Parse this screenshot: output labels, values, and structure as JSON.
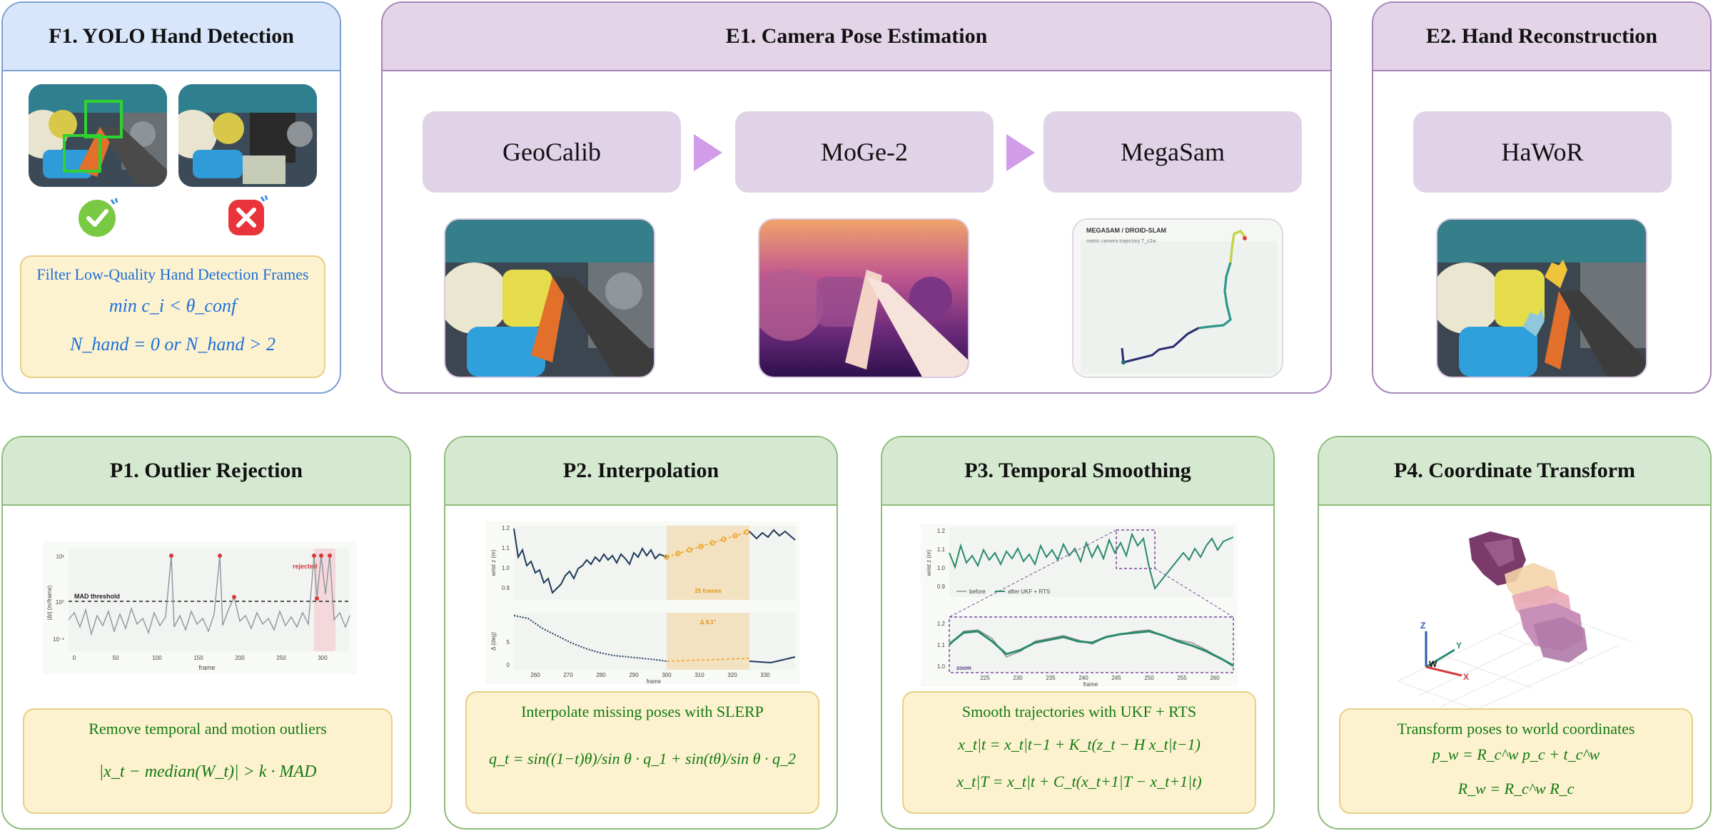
{
  "f1": {
    "title": "F1. YOLO Hand Detection",
    "note_title": "Filter Low-Quality Hand Detection Frames",
    "formula1": "min c_i < θ_conf",
    "formula2": "N_hand = 0 or N_hand > 2",
    "icons": [
      "check-badge-icon",
      "cross-badge-icon"
    ],
    "colors": {
      "accent": "#1c6fd8",
      "check": "#7ac943",
      "cross": "#e8343a",
      "detect_box": "#2fd32f"
    }
  },
  "e1": {
    "title": "E1. Camera Pose Estimation",
    "stages": [
      "GeoCalib",
      "MoGe-2",
      "MegaSam"
    ],
    "traj_title": "MEGASAM / DROID-SLAM",
    "traj_sub": "metric camera trajectory T_c2w"
  },
  "e2": {
    "title": "E2. Hand Reconstruction",
    "stage": "HaWoR"
  },
  "p1": {
    "title": "P1. Outlier Rejection",
    "note_title": "Remove temporal and motion outliers",
    "formula": "|x_t − median(W_t)| > k · MAD",
    "plot": {
      "ylabel": "|Δt| (m/frame)",
      "xlabel": "frame",
      "threshold_label": "MAD threshold",
      "rejected_label": "rejected",
      "xticks": [
        "0",
        "50",
        "100",
        "150",
        "200",
        "250",
        "300"
      ],
      "yticks": [
        "10¹",
        "10⁰",
        "10⁻¹"
      ]
    }
  },
  "p2": {
    "title": "P2. Interpolation",
    "note_title": "Interpolate missing poses with SLERP",
    "formula": "q_t = sin((1−t)θ)/sin θ · q_1 + sin(tθ)/sin θ · q_2",
    "plot": {
      "ylabel_top": "wrist z (m)",
      "ylabel_bottom": "Δ (deg)",
      "xlabel": "frame",
      "gap_label": "25 frames",
      "angle_label": "Δ 8.1°",
      "xticks": [
        "260",
        "270",
        "280",
        "290",
        "300",
        "310",
        "320",
        "330"
      ],
      "yticks_top": [
        "1.2",
        "1.1",
        "1.0",
        "0.9"
      ],
      "yticks_bottom": [
        "5",
        "0"
      ]
    }
  },
  "p3": {
    "title": "P3. Temporal Smoothing",
    "note_title": "Smooth trajectories with UKF + RTS",
    "formula1": "x_t|t = x_t|t−1 + K_t(z_t − H x_t|t−1)",
    "formula2": "x_t|T = x_t|t + C_t(x_t+1|T − x_t+1|t)",
    "plot": {
      "ylabel": "wrist z (m)",
      "xlabel": "frame",
      "legend": [
        "before",
        "after UKF + RTS"
      ],
      "zoom_label": "zoom",
      "xticks": [
        "225",
        "230",
        "235",
        "240",
        "245",
        "250",
        "255",
        "260"
      ],
      "yticks_top": [
        "1.2",
        "1.1",
        "1.0",
        "0.9"
      ],
      "yticks_bottom": [
        "1.2",
        "1.1",
        "1.0"
      ]
    }
  },
  "p4": {
    "title": "P4. Coordinate Transform",
    "note_title": "Transform poses to world coordinates",
    "formula1": "p_w = R_c^w p_c + t_c^w",
    "formula2": "R_w = R_c^w R_c",
    "axes": [
      "Z",
      "Y",
      "W",
      "X"
    ]
  }
}
